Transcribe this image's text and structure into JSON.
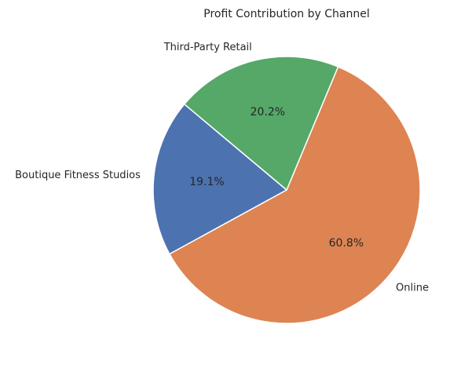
{
  "chart_data": {
    "type": "pie",
    "title": "Profit Contribution by Channel",
    "categories": [
      "Boutique Fitness Studios",
      "Online",
      "Third-Party Retail"
    ],
    "values": [
      19.1,
      60.8,
      20.2
    ],
    "percent_labels": [
      "19.1%",
      "60.8%",
      "20.2%"
    ],
    "colors": [
      "#4c72b0",
      "#dd8452",
      "#55a868"
    ],
    "start_angle_deg": 140,
    "direction": "counterclockwise",
    "edge_color": "#ffffff",
    "legend": "none"
  }
}
